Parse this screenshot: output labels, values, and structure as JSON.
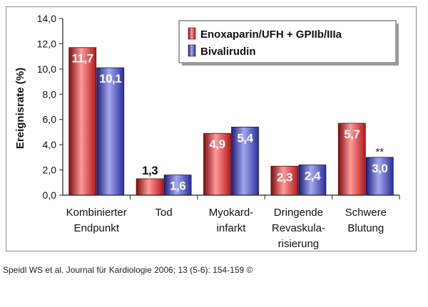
{
  "chart_data": {
    "type": "bar",
    "ylabel": "Ereignisrate (%)",
    "ylim": [
      0,
      14
    ],
    "yticks": [
      "0,0",
      "2,0",
      "4,0",
      "6,0",
      "8,0",
      "10,0",
      "12,0",
      "14,0"
    ],
    "categories": [
      [
        "Kombinierter",
        "Endpunkt"
      ],
      [
        "Tod"
      ],
      [
        "Myokard-",
        "infarkt"
      ],
      [
        "Dringende",
        "Revaskula-",
        "risierung"
      ],
      [
        "Schwere",
        "Blutung"
      ]
    ],
    "series": [
      {
        "name": "Enoxaparin/UFH + GPIIb/IIIa",
        "values": [
          11.7,
          1.3,
          4.9,
          2.3,
          5.7
        ],
        "labels": [
          "11,7",
          "1,3",
          "4,9",
          "2,3",
          "5,7"
        ],
        "color": "#d42a2a"
      },
      {
        "name": "Bivalirudin",
        "values": [
          10.1,
          1.6,
          5.4,
          2.4,
          3.0
        ],
        "labels": [
          "10,1",
          "1,6",
          "5,4",
          "2,4",
          "3,0"
        ],
        "color": "#3a3eb8"
      }
    ],
    "legend_position": "top-right",
    "annotations": [
      {
        "text": "**",
        "category_index": 4,
        "series_index": 1
      }
    ]
  },
  "citation": "Speidl WS et al. Journal für Kardiologie 2006; 13 (5-6): 154-159 ©"
}
